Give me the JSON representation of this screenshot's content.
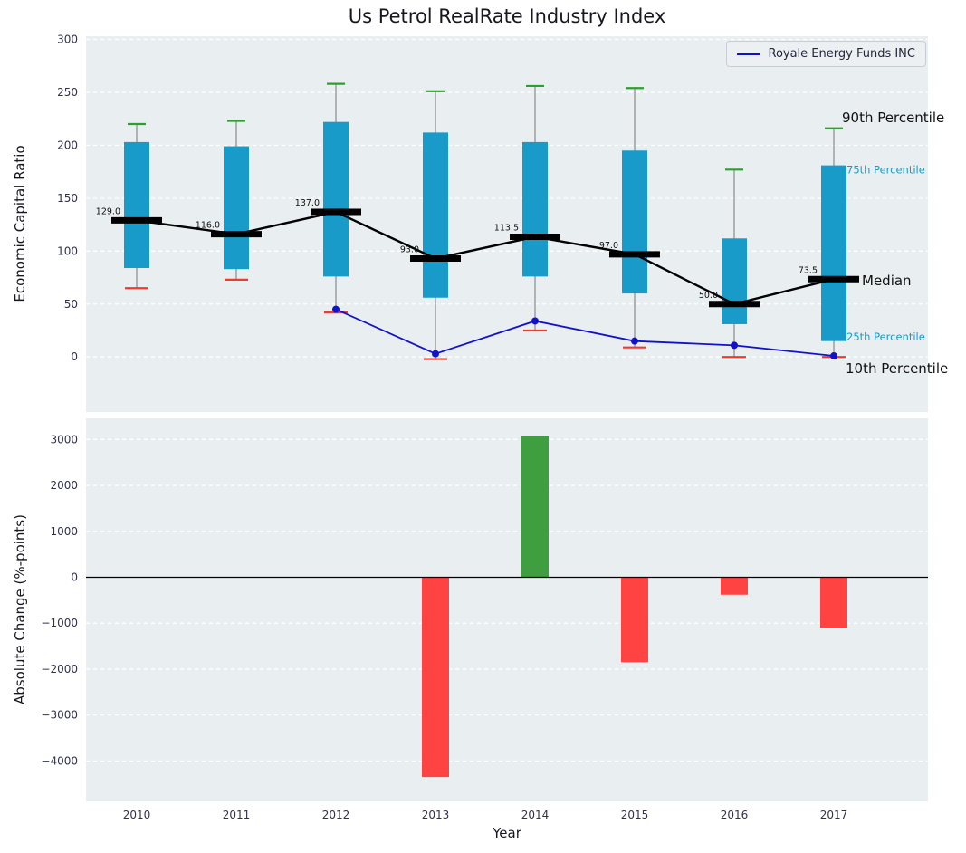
{
  "colors": {
    "panel_bg": "#e9eef1",
    "grid": "#ffffff",
    "tick_text": "#31314e",
    "box": "#189bc9",
    "whisker": "#8a8a8a",
    "cap_top": "#2ca02c",
    "cap_bottom": "#ef3b2c",
    "median": "#000000",
    "series_line": "#1212cc",
    "bar_positive": "#3f9e3f",
    "bar_negative": "#ff4343",
    "zero_line": "#000000"
  },
  "chart_data": [
    {
      "type": "boxplot",
      "title": "Us Petrol RealRate Industry Index",
      "ylabel": "Economic Capital Ratio",
      "categories": [
        "2010",
        "2011",
        "2012",
        "2013",
        "2014",
        "2015",
        "2016",
        "2017"
      ],
      "ylim": [
        -52,
        303
      ],
      "yticks": [
        300,
        250,
        200,
        150,
        100,
        50,
        0
      ],
      "ytick_labels": [
        "300",
        "250",
        "200",
        "150",
        "100",
        "50",
        "0"
      ],
      "grid": "horizontal-dashed",
      "boxes": {
        "p90": [
          220,
          223,
          258,
          251,
          256,
          254,
          177,
          216
        ],
        "p75": [
          203,
          199,
          222,
          212,
          203,
          195,
          112,
          181
        ],
        "median": [
          129.0,
          116.0,
          137.0,
          93.0,
          113.5,
          97.0,
          50.0,
          73.5
        ],
        "p25": [
          84,
          83,
          76,
          56,
          76,
          60,
          31,
          15
        ],
        "p10": [
          65,
          73,
          42,
          -2,
          25,
          9,
          0,
          0
        ]
      },
      "median_labels": [
        "129.0",
        "116.0",
        "137.0",
        "93.0",
        "113.5",
        "97.0",
        "50.0",
        "73.5"
      ],
      "series": [
        {
          "name": "Royale Energy Funds INC",
          "x": [
            "2012",
            "2013",
            "2014",
            "2015",
            "2016",
            "2017"
          ],
          "values": [
            45,
            3,
            34,
            15,
            11,
            1
          ]
        }
      ],
      "annotations": [
        {
          "label": "90th Percentile",
          "y": 225,
          "dx": 9,
          "color": "#111111",
          "size": 15
        },
        {
          "label": "75th Percentile",
          "y": 177,
          "dx": 14,
          "color": "#189bc9",
          "size": 11.5
        },
        {
          "label": "Median",
          "y": 71,
          "dx": 31,
          "color": "#111111",
          "size": 15
        },
        {
          "label": "25th Percentile",
          "y": 19,
          "dx": 14,
          "color": "#189bc9",
          "size": 11.5
        },
        {
          "label": "10th Percentile",
          "y": -12,
          "dx": 13,
          "color": "#111111",
          "size": 15
        }
      ],
      "legend_position": "upper right"
    },
    {
      "type": "bar",
      "ylabel": "Absolute Change (%-points)",
      "xlabel": "Year",
      "categories": [
        "2010",
        "2011",
        "2012",
        "2013",
        "2014",
        "2015",
        "2016",
        "2017"
      ],
      "values": [
        0,
        0,
        0,
        -4350,
        3080,
        -1850,
        -380,
        -1100
      ],
      "ylim": [
        -4880,
        3460
      ],
      "yticks": [
        3000,
        2000,
        1000,
        0,
        -1000,
        -2000,
        -3000,
        -4000
      ],
      "ytick_labels": [
        "3000",
        "2000",
        "1000",
        "0",
        "−1000",
        "−2000",
        "−3000",
        "−4000"
      ]
    }
  ]
}
